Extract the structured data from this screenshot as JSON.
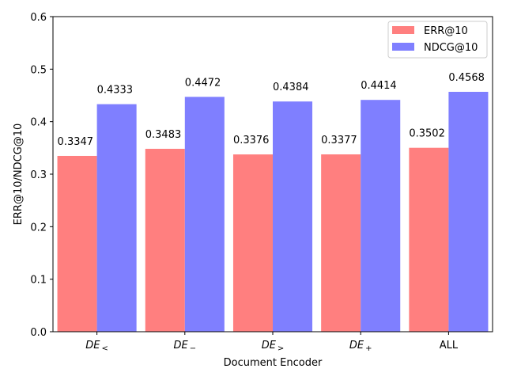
{
  "chart_data": {
    "type": "bar",
    "categories": [
      "DE_<",
      "DE_−",
      "DE_>",
      "DE_+",
      "ALL"
    ],
    "category_labels": [
      {
        "main": "DE",
        "sub": "<"
      },
      {
        "main": "DE",
        "sub": "−"
      },
      {
        "main": "DE",
        "sub": ">"
      },
      {
        "main": "DE",
        "sub": "+"
      },
      {
        "main": "ALL",
        "sub": ""
      }
    ],
    "series": [
      {
        "name": "ERR@10",
        "values": [
          0.3347,
          0.3483,
          0.3376,
          0.3377,
          0.3502
        ],
        "labels": [
          "0.3347",
          "0.3483",
          "0.3376",
          "0.3377",
          "0.3502"
        ],
        "color": "#ff7f7f"
      },
      {
        "name": "NDCG@10",
        "values": [
          0.4333,
          0.4472,
          0.4384,
          0.4414,
          0.4568
        ],
        "labels": [
          "0.4333",
          "0.4472",
          "0.4384",
          "0.4414",
          "0.4568"
        ],
        "color": "#7f7fff"
      }
    ],
    "xlabel": "Document Encoder",
    "ylabel": "ERR@10/NDCG@10",
    "ylim": [
      0,
      0.6
    ],
    "yticks": [
      0.0,
      0.1,
      0.2,
      0.3,
      0.4,
      0.5,
      0.6
    ],
    "ytick_labels": [
      "0.0",
      "0.1",
      "0.2",
      "0.3",
      "0.4",
      "0.5",
      "0.6"
    ],
    "grid": false,
    "legend_position": "top-right"
  }
}
